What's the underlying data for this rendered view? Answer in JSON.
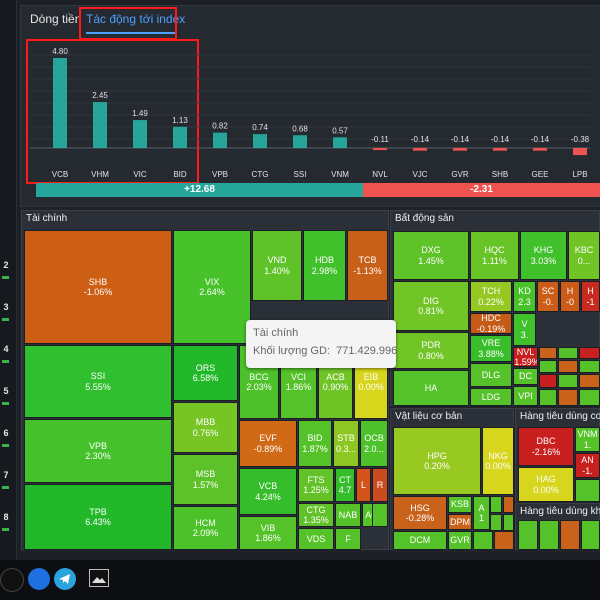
{
  "tabs": [
    {
      "label": "Dòng tiền",
      "active": false
    },
    {
      "label": "Tác động tới index",
      "active": true
    }
  ],
  "colors": {
    "teal": "#26a69a",
    "red_bar": "#ef5350",
    "summary_pos": "#26a69a",
    "summary_neg": "#ef5350",
    "annotation": "#ff1a1a",
    "tab_active": "#4ea0ff"
  },
  "chart_data": {
    "type": "bar",
    "categories": [
      "VCB",
      "VHM",
      "VIC",
      "BID",
      "VPB",
      "CTG",
      "SSI",
      "VNM",
      "NVL",
      "VJC",
      "GVR",
      "SHB",
      "GEE",
      "LPB"
    ],
    "values": [
      4.8,
      2.45,
      1.49,
      1.13,
      0.82,
      0.74,
      0.68,
      0.57,
      -0.11,
      -0.14,
      -0.14,
      -0.14,
      -0.14,
      -0.38
    ],
    "labels": [
      "4.80",
      "2.45",
      "1.49",
      "1.13",
      "0.82",
      "0.74",
      "0.68",
      "0.57",
      "-0.11",
      "-0.14",
      "-0.14",
      "-0.14",
      "-0.14",
      "-0.38"
    ],
    "title": "",
    "xlabel": "",
    "ylabel": ""
  },
  "summary": {
    "positive": "+12.68",
    "negative": "-2.31",
    "positive_share": 0.58
  },
  "left_strip": [
    "2",
    "3",
    "4",
    "5",
    "6",
    "7",
    "8"
  ],
  "sectors": {
    "finance": "Tài chính",
    "real_estate": "Bất động sản",
    "materials": "Vật liệu cơ bản",
    "consumer_staples": "Hàng tiêu dùng cơ b",
    "consumer_disc": "Hàng tiêu dùng khô"
  },
  "tiles": [
    {
      "ticker": "SHB",
      "change": "-1.06%",
      "color": "#cc5f14"
    },
    {
      "ticker": "SSI",
      "change": "5.55%",
      "color": "#2fbf2f"
    },
    {
      "ticker": "VPB",
      "change": "2.30%",
      "color": "#44c12b"
    },
    {
      "ticker": "TPB",
      "change": "6.43%",
      "color": "#22b82a"
    },
    {
      "ticker": "VIX",
      "change": "2.64%",
      "color": "#47c22a"
    },
    {
      "ticker": "VND",
      "change": "1.40%",
      "color": "#5fc229"
    },
    {
      "ticker": "HDB",
      "change": "2.98%",
      "color": "#40c02b"
    },
    {
      "ticker": "TCB",
      "change": "-1.13%",
      "color": "#c9601a"
    },
    {
      "ticker": "ORS",
      "change": "6.58%",
      "color": "#22b82a"
    },
    {
      "ticker": "MBB",
      "change": "0.76%",
      "color": "#76c525"
    },
    {
      "ticker": "MSB",
      "change": "1.57%",
      "color": "#5dc229"
    },
    {
      "ticker": "HCM",
      "change": "2.09%",
      "color": "#4dc12a"
    },
    {
      "ticker": "BCG",
      "change": "2.03%",
      "color": "#4dc12a"
    },
    {
      "ticker": "VCI",
      "change": "1.86%",
      "color": "#55c229"
    },
    {
      "ticker": "ACB",
      "change": "0.90%",
      "color": "#70c426"
    },
    {
      "ticker": "EIB",
      "change": "0.00%",
      "color": "#d7d61c"
    },
    {
      "ticker": "EVF",
      "change": "-0.89%",
      "color": "#d06a17"
    },
    {
      "ticker": "BID",
      "change": "1.87%",
      "color": "#55c229"
    },
    {
      "ticker": "STB",
      "change": "0.3...",
      "color": "#8ec723"
    },
    {
      "ticker": "OCB",
      "change": "2.0...",
      "color": "#4dc12a"
    },
    {
      "ticker": "VCB",
      "change": "4.24%",
      "color": "#36bd2b"
    },
    {
      "ticker": "FTS",
      "change": "1.25%",
      "color": "#63c228"
    },
    {
      "ticker": "CT",
      "change": "4.7",
      "color": "#36bd2b"
    },
    {
      "ticker": "L",
      "change": "",
      "color": "#d3541a"
    },
    {
      "ticker": "R",
      "change": "",
      "color": "#cc4a1f"
    },
    {
      "ticker": "VIB",
      "change": "1.86%",
      "color": "#55c229"
    },
    {
      "ticker": "CTG",
      "change": "1.35%",
      "color": "#60c228"
    },
    {
      "ticker": "NAB",
      "change": "",
      "color": "#55c229"
    },
    {
      "ticker": "AGR",
      "change": "",
      "color": "#55c229"
    },
    {
      "ticker": "F",
      "change": "",
      "color": "#55c229"
    },
    {
      "ticker": "VDS",
      "change": "",
      "color": "#55c229"
    },
    {
      "ticker": "DXG",
      "change": "1.45%",
      "color": "#5ec229"
    },
    {
      "ticker": "HQC",
      "change": "1.11%",
      "color": "#68c327"
    },
    {
      "ticker": "KHG",
      "change": "3.03%",
      "color": "#40c02b"
    },
    {
      "ticker": "KBC",
      "change": "0...",
      "color": "#70c426"
    },
    {
      "ticker": "DIG",
      "change": "0.81%",
      "color": "#72c526"
    },
    {
      "ticker": "TCH",
      "change": "0.22%",
      "color": "#95c822"
    },
    {
      "ticker": "KD",
      "change": "2.3",
      "color": "#49c12a"
    },
    {
      "ticker": "SC",
      "change": "-0.",
      "color": "#cc5d18"
    },
    {
      "ticker": "H",
      "change": "-0",
      "color": "#cc5a18"
    },
    {
      "ticker": "H",
      "change": "-1",
      "color": "#c72b1f"
    },
    {
      "ticker": "HDC",
      "change": "-0.19%",
      "color": "#c65b18"
    },
    {
      "ticker": "PDR",
      "change": "0.80%",
      "color": "#72c526"
    },
    {
      "ticker": "VRE",
      "change": "3.88%",
      "color": "#38be2b"
    },
    {
      "ticker": "V",
      "change": "3.",
      "color": "#40c02b"
    },
    {
      "ticker": "DLG",
      "change": "",
      "color": "#55c229"
    },
    {
      "ticker": "NVL",
      "change": "-1.59%",
      "color": "#c81f1f"
    },
    {
      "ticker": "DC",
      "change": "",
      "color": "#55c229"
    },
    {
      "ticker": "HA",
      "change": "",
      "color": "#55c229"
    },
    {
      "ticker": "LDG",
      "change": "",
      "color": "#55c229"
    },
    {
      "ticker": "VPI",
      "change": "",
      "color": "#55c229"
    },
    {
      "ticker": "HPG",
      "change": "0.20%",
      "color": "#97c922"
    },
    {
      "ticker": "NKG",
      "change": "0.00%",
      "color": "#d7d61c"
    },
    {
      "ticker": "HSG",
      "change": "-0.28%",
      "color": "#c9621a"
    },
    {
      "ticker": "KSB",
      "change": "",
      "color": "#55c229"
    },
    {
      "ticker": "DPM",
      "change": "",
      "color": "#c9621a"
    },
    {
      "ticker": "A",
      "change": "1",
      "color": "#55c229"
    },
    {
      "ticker": "DCM",
      "change": "",
      "color": "#55c229"
    },
    {
      "ticker": "GVR",
      "change": "",
      "color": "#55c229"
    },
    {
      "ticker": "DBC",
      "change": "-2.16%",
      "color": "#c81f1f"
    },
    {
      "ticker": "VNM",
      "change": "1.",
      "color": "#55c229"
    },
    {
      "ticker": "AN",
      "change": "-1.",
      "color": "#c81f1f"
    },
    {
      "ticker": "HAG",
      "change": "0.00%",
      "color": "#d7d61c"
    }
  ],
  "tooltip": {
    "title": "Tài chính",
    "label": "Khối lượng GD:",
    "value": "771.429.996"
  }
}
